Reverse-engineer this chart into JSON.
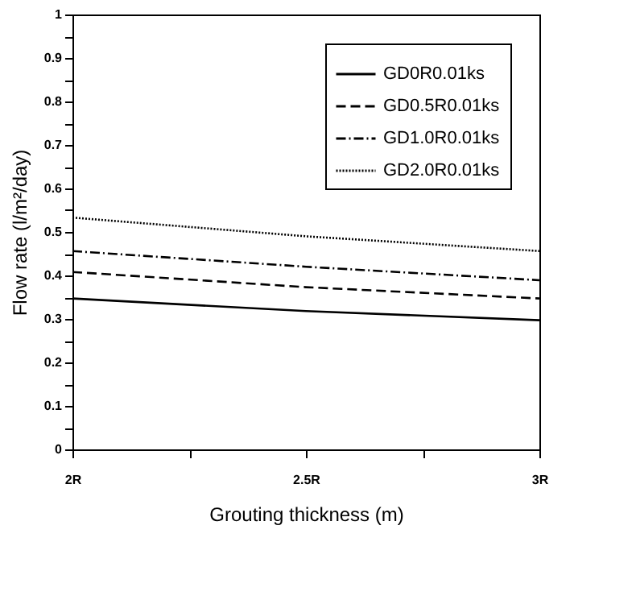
{
  "chart_data": {
    "type": "line",
    "xlabel": "Grouting thickness (m)",
    "ylabel": "Flow rate (l/m²/day)",
    "x": [
      2,
      2.5,
      3
    ],
    "series": [
      {
        "name": "GD0R0.01ks",
        "color": "#000000",
        "line_style": "solid",
        "values": [
          0.347,
          0.318,
          0.297
        ]
      },
      {
        "name": "GD0.5R0.01ks",
        "color": "#000000",
        "line_style": "dashed",
        "values": [
          0.408,
          0.373,
          0.347
        ]
      },
      {
        "name": "GD1.0R0.01ks",
        "color": "#000000",
        "line_style": "dashdot",
        "values": [
          0.456,
          0.42,
          0.389
        ]
      },
      {
        "name": "GD2.0R0.01ks",
        "color": "#000000",
        "line_style": "dotted",
        "values": [
          0.533,
          0.49,
          0.456
        ]
      }
    ],
    "xlim": [
      2,
      3
    ],
    "xticks": [
      {
        "value": 2,
        "label": "2R"
      },
      {
        "value": 2.25,
        "label": null
      },
      {
        "value": 2.5,
        "label": "2.5R"
      },
      {
        "value": 2.75,
        "label": null
      },
      {
        "value": 3,
        "label": "3R"
      }
    ],
    "ylim": [
      0,
      1
    ],
    "yticks": [
      0,
      {
        "value": 0.05,
        "label": null
      },
      0.1,
      {
        "value": 0.15,
        "label": null
      },
      0.2,
      {
        "value": 0.25,
        "label": null
      },
      0.3,
      {
        "value": 0.35,
        "label": null
      },
      0.4,
      {
        "value": 0.45,
        "label": null
      },
      0.5,
      {
        "value": 0.55,
        "label": null
      },
      0.6,
      {
        "value": 0.65,
        "label": null
      },
      0.7,
      {
        "value": 0.75,
        "label": null
      },
      0.8,
      {
        "value": 0.85,
        "label": null
      },
      0.9,
      {
        "value": 0.95,
        "label": null
      },
      1
    ],
    "grid": false,
    "legend": "top right",
    "marker": "none"
  }
}
